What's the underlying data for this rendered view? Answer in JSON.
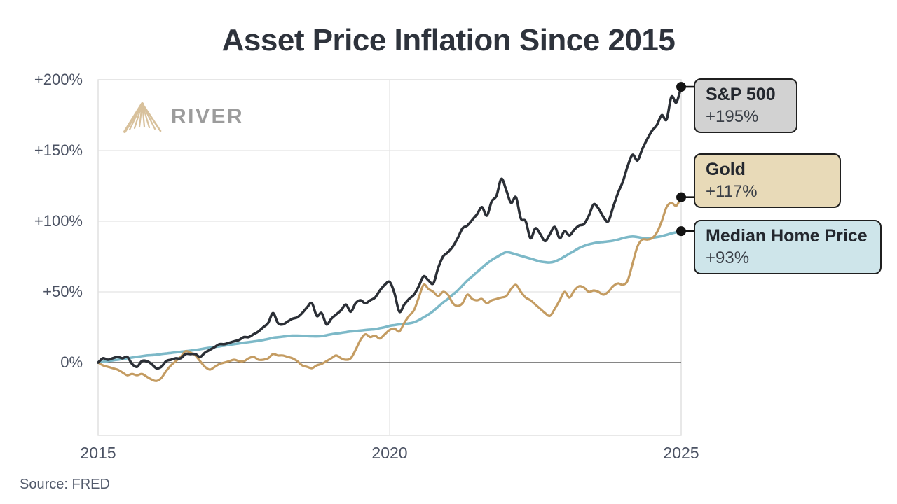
{
  "title": "Asset Price Inflation Since 2015",
  "source": "Source: FRED",
  "logo": {
    "text": "RIVER",
    "icon_color": "#d8c19c",
    "text_color": "#9c9c9c"
  },
  "colors": {
    "grid": "#e4e4e4",
    "plot_border": "#dfdfdf",
    "zero_line": "#3f3f3f",
    "connector": "#141414",
    "axis_text": "#4b5263"
  },
  "chart_data": {
    "type": "line",
    "title": "Asset Price Inflation Since 2015",
    "xlabel": "",
    "ylabel": "",
    "x_start_year": 2015,
    "x_end_year": 2025,
    "points_per_year": 12,
    "xticks": [
      "2015",
      "2020",
      "2025"
    ],
    "xtick_years": [
      2015,
      2020,
      2025
    ],
    "yticks": [
      "+200%",
      "+150%",
      "+100%",
      "+50%",
      "0%"
    ],
    "ytick_values": [
      200,
      150,
      100,
      50,
      0
    ],
    "ylim": [
      -51,
      200
    ],
    "grid": true,
    "legend_position": "right-annotations",
    "series": [
      {
        "name": "S&P 500",
        "change_label": "+195%",
        "final_value_pct": 195,
        "color": "#2b2f36",
        "label_bg": "#d2d2d2",
        "values": [
          0,
          3,
          2,
          3,
          4,
          3,
          4,
          -1,
          -3,
          1,
          1,
          -1,
          -4,
          -3,
          1,
          2,
          3,
          3,
          6,
          6,
          6,
          4,
          7,
          9,
          11,
          13,
          13,
          14,
          15,
          16,
          18,
          18,
          20,
          22,
          25,
          28,
          35,
          28,
          27,
          29,
          31,
          32,
          35,
          39,
          42,
          33,
          35,
          27,
          31,
          34,
          37,
          41,
          36,
          42,
          44,
          42,
          44,
          46,
          51,
          55,
          57,
          49,
          36,
          41,
          45,
          48,
          54,
          61,
          58,
          56,
          67,
          75,
          78,
          82,
          88,
          95,
          97,
          101,
          105,
          110,
          104,
          114,
          118,
          130,
          122,
          113,
          117,
          102,
          100,
          88,
          95,
          91,
          86,
          91,
          96,
          88,
          93,
          90,
          94,
          97,
          98,
          104,
          112,
          109,
          103,
          100,
          110,
          120,
          128,
          139,
          147,
          143,
          151,
          158,
          164,
          168,
          175,
          172,
          188,
          184,
          195
        ]
      },
      {
        "name": "Gold",
        "change_label": "+117%",
        "final_value_pct": 117,
        "color": "#c49c62",
        "label_bg": "#e8dab8",
        "values": [
          0,
          -2,
          -3,
          -4,
          -5,
          -7,
          -9,
          -8,
          -9,
          -8,
          -10,
          -12,
          -13,
          -11,
          -6,
          -2,
          1,
          4,
          8,
          7,
          5,
          1,
          -3,
          -5,
          -3,
          -1,
          0,
          1,
          2,
          1,
          1,
          3,
          4,
          2,
          2,
          3,
          6,
          5,
          5,
          4,
          3,
          1,
          -2,
          -3,
          -4,
          -2,
          -1,
          1,
          3,
          5,
          3,
          2,
          3,
          9,
          16,
          20,
          18,
          19,
          17,
          20,
          23,
          24,
          22,
          28,
          33,
          37,
          46,
          55,
          52,
          50,
          47,
          50,
          48,
          42,
          40,
          42,
          48,
          45,
          44,
          45,
          42,
          44,
          45,
          46,
          47,
          52,
          55,
          50,
          46,
          44,
          41,
          38,
          35,
          33,
          38,
          44,
          50,
          46,
          51,
          54,
          53,
          50,
          51,
          50,
          48,
          50,
          54,
          56,
          55,
          58,
          70,
          82,
          87,
          87,
          88,
          92,
          100,
          110,
          113,
          111,
          117
        ]
      },
      {
        "name": "Median Home Price",
        "change_label": "+93%",
        "final_value_pct": 93,
        "color": "#7db9c8",
        "label_bg": "#cee5ea",
        "values": [
          0,
          0.5,
          1,
          1.5,
          2,
          2.5,
          3,
          3.5,
          4,
          4.5,
          5,
          5.2,
          5.5,
          6,
          6.4,
          6.8,
          7.2,
          7.6,
          8,
          8.4,
          8.9,
          9.4,
          10,
          10.5,
          11,
          11.5,
          12,
          12.5,
          13,
          13.5,
          14,
          14.4,
          14.9,
          15.4,
          16,
          16.7,
          17.5,
          17.9,
          18.3,
          18.7,
          19,
          19,
          18.9,
          18.7,
          18.6,
          18.5,
          18.7,
          19.3,
          20,
          20.5,
          21,
          21.5,
          22,
          22.3,
          22.6,
          23,
          23.3,
          23.6,
          24.3,
          25,
          26,
          26.5,
          27,
          27.3,
          27.7,
          28.5,
          30,
          32,
          34,
          36.5,
          39.5,
          42.5,
          45,
          48,
          51,
          54.5,
          58,
          61,
          64,
          67,
          70,
          72.5,
          74.5,
          76.5,
          78,
          77.5,
          76.5,
          75.5,
          74.5,
          73.5,
          72.5,
          71.5,
          71,
          70.8,
          71.5,
          73,
          75,
          77,
          79,
          81,
          82.5,
          83.6,
          84.4,
          85,
          85.3,
          85.7,
          86.2,
          87,
          88,
          88.8,
          89.2,
          88.8,
          88.2,
          88,
          88.3,
          88.8,
          89.5,
          90.4,
          91.4,
          92.2,
          93
        ]
      }
    ]
  }
}
